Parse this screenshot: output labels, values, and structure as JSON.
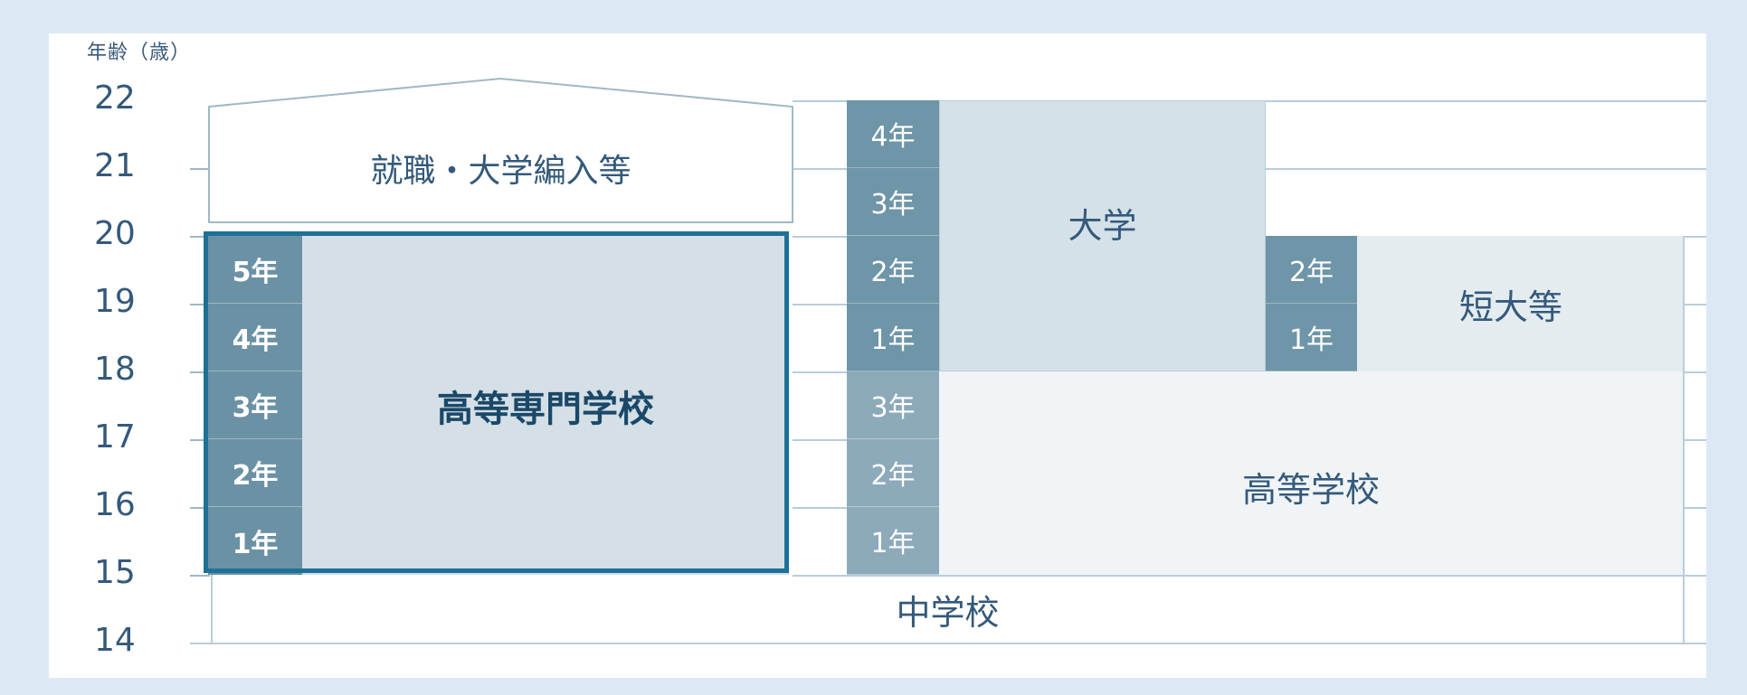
{
  "axis": {
    "title": "年齢（歳）",
    "ticks": [
      "22",
      "21",
      "20",
      "19",
      "18",
      "17",
      "16",
      "15",
      "14"
    ]
  },
  "blocks": {
    "employment": "就職・大学編入等",
    "kosen": "高等専門学校",
    "university": "大学",
    "junior_college": "短大等",
    "high_school": "高等学校",
    "middle_school": "中学校"
  },
  "years": {
    "kosen": [
      "5年",
      "4年",
      "3年",
      "2年",
      "1年"
    ],
    "university": [
      "4年",
      "3年",
      "2年",
      "1年"
    ],
    "high_school": [
      "3年",
      "2年",
      "1年"
    ],
    "junior_college": [
      "2年",
      "1年"
    ]
  },
  "colors": {
    "background": "#dce9f5",
    "kosen_frame": "#1e7196",
    "year_dark": "#6e95a8",
    "year_light": "#8daabb"
  }
}
